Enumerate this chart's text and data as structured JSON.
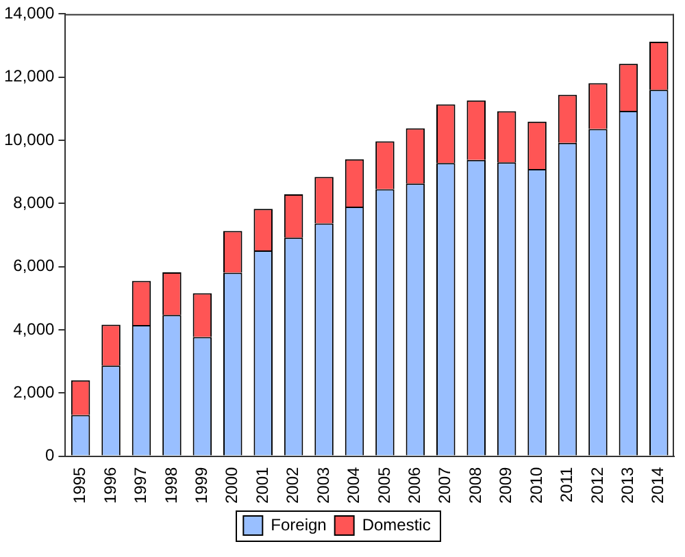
{
  "chart_data": {
    "type": "bar",
    "stacked": true,
    "categories": [
      "1995",
      "1996",
      "1997",
      "1998",
      "1999",
      "2000",
      "2001",
      "2002",
      "2003",
      "2004",
      "2005",
      "2006",
      "2007",
      "2008",
      "2009",
      "2010",
      "2011",
      "2012",
      "2013",
      "2014"
    ],
    "series": [
      {
        "name": "Foreign",
        "color": "#99bfff",
        "values": [
          1300,
          2870,
          4150,
          4470,
          3770,
          5810,
          6510,
          6920,
          7370,
          7900,
          8450,
          8630,
          9280,
          9380,
          9300,
          9090,
          9920,
          10360,
          10930,
          11600
        ]
      },
      {
        "name": "Domestic",
        "color": "#ff5555",
        "values": [
          1100,
          1290,
          1400,
          1350,
          1390,
          1320,
          1320,
          1370,
          1470,
          1500,
          1520,
          1750,
          1860,
          1880,
          1620,
          1500,
          1520,
          1450,
          1490,
          1520
        ]
      }
    ],
    "ylim": [
      0,
      14000
    ],
    "yticks": [
      0,
      {
        "value": 2000,
        "label": "2,000"
      },
      {
        "value": 4000,
        "label": "4,000"
      },
      {
        "value": 6000,
        "label": "6,000"
      },
      {
        "value": 8000,
        "label": "8,000"
      },
      {
        "value": 10000,
        "label": "10,000"
      },
      {
        "value": 12000,
        "label": "12,000"
      },
      {
        "value": 14000,
        "label": "14,000"
      }
    ],
    "grid": false,
    "legend": "bottom"
  }
}
